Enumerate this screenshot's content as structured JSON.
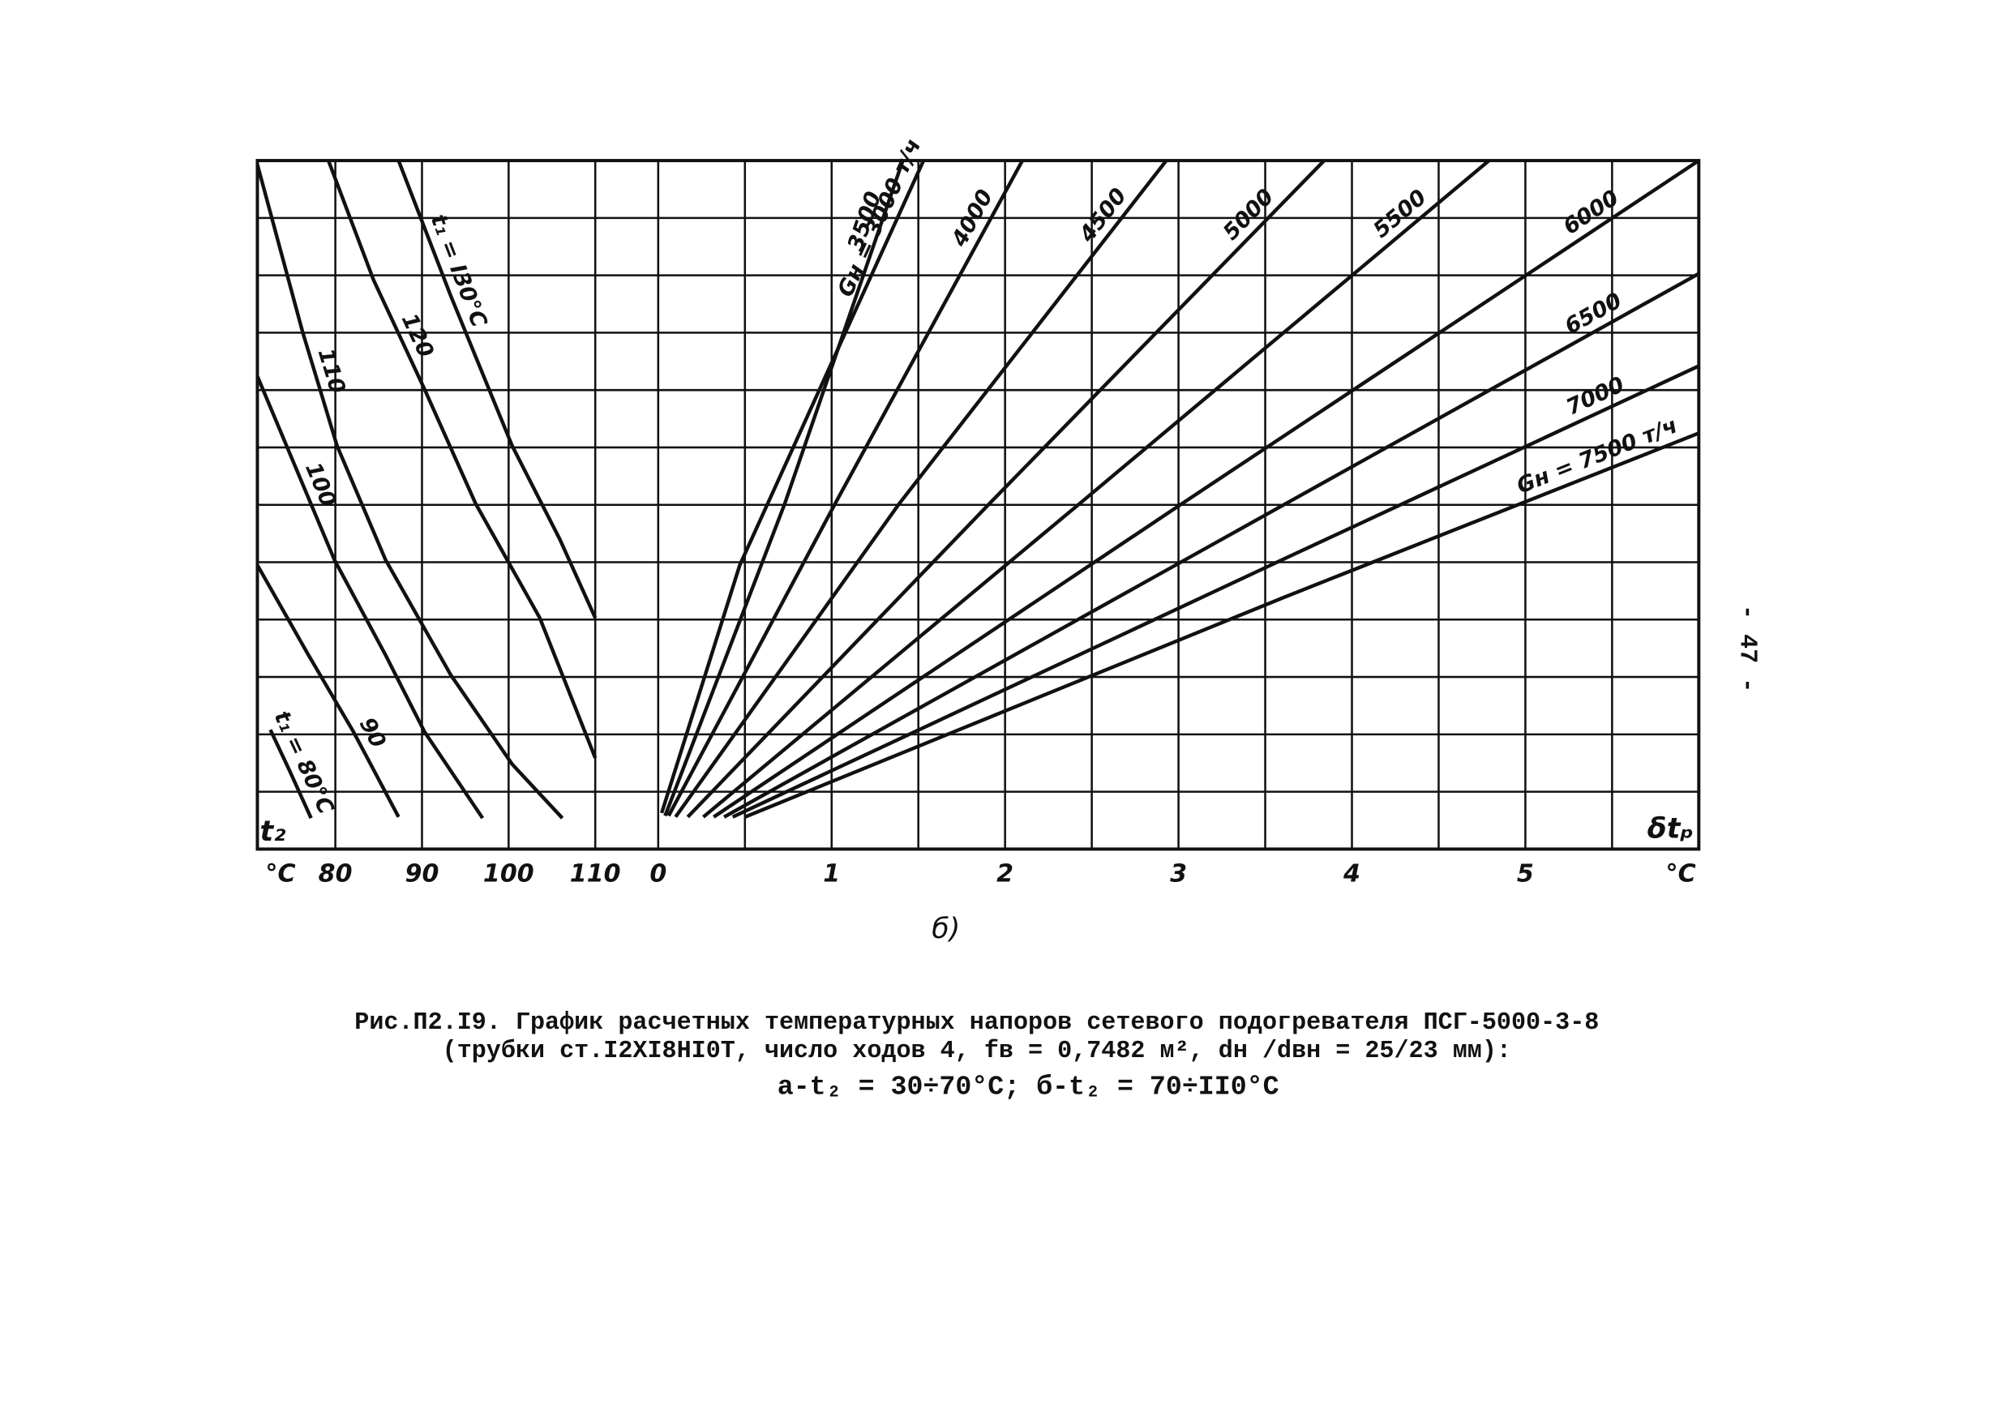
{
  "chart_data": [
    {
      "type": "line",
      "xlim": [
        71,
        110
      ],
      "xticks": [
        80,
        90,
        100,
        110
      ],
      "ylim": [
        0,
        12
      ],
      "yticks": [
        0,
        1,
        2,
        3,
        4,
        5,
        6,
        7,
        8,
        9,
        10,
        11,
        12
      ],
      "show_ytick_labels": false,
      "grid": true,
      "xlabel": "t₂",
      "xunit": "°C",
      "series": [
        {
          "name": "t₁ = 80°C",
          "color": "#111111",
          "x": [
            72.5,
            74.7,
            77.2
          ],
          "values": [
            2.08,
            1.37,
            0.54
          ]
        },
        {
          "name": "90",
          "color": "#111111",
          "x": [
            71,
            76.9,
            82.1,
            87.3
          ],
          "values": [
            4.95,
            3.38,
            2.04,
            0.56
          ]
        },
        {
          "name": "100",
          "color": "#111111",
          "x": [
            71,
            79.9,
            85.8,
            90.3,
            97
          ],
          "values": [
            8.24,
            5.04,
            3.38,
            2.04,
            0.54
          ]
        },
        {
          "name": "110",
          "color": "#111111",
          "x": [
            71,
            76.2,
            80.2,
            85.8,
            93.3,
            100.4,
            106.2
          ],
          "values": [
            11.93,
            9.02,
            7.03,
            5.04,
            3.04,
            1.48,
            0.54
          ]
        },
        {
          "name": "120",
          "color": "#111111",
          "x": [
            79.2,
            84.4,
            90.3,
            96.2,
            103.6,
            110
          ],
          "values": [
            12,
            9.92,
            8.01,
            6.02,
            4.03,
            1.59
          ]
        },
        {
          "name": "t₁ = I30°C",
          "color": "#111111",
          "x": [
            87.3,
            93.3,
            100.4,
            105.9,
            110
          ],
          "values": [
            12,
            9.65,
            7.03,
            5.4,
            4.03
          ]
        }
      ]
    },
    {
      "type": "line",
      "xlim": [
        0,
        6
      ],
      "xticks": [
        0,
        1,
        2,
        3,
        4,
        5
      ],
      "xminorticks": [
        0.5,
        1.5,
        2.5,
        3.5,
        4.5,
        5.5
      ],
      "ylim": [
        0,
        12
      ],
      "yticks": [
        0,
        1,
        2,
        3,
        4,
        5,
        6,
        7,
        8,
        9,
        10,
        11,
        12
      ],
      "show_ytick_labels": false,
      "grid": true,
      "xlabel": "δtₚ",
      "xunit": "°C",
      "series": [
        {
          "name": "Gн = 3000 т/ч",
          "color": "#111111",
          "x": [
            0.02,
            0.47,
            1.53
          ],
          "values": [
            0.63,
            4.95,
            12
          ]
        },
        {
          "name": "3500",
          "color": "#111111",
          "x": [
            0.04,
            0.73,
            1.41
          ],
          "values": [
            0.58,
            6.02,
            12
          ]
        },
        {
          "name": "4000",
          "color": "#111111",
          "x": [
            0.06,
            1.02,
            2.1
          ],
          "values": [
            0.58,
            6.02,
            12
          ]
        },
        {
          "name": "4500",
          "color": "#111111",
          "x": [
            0.1,
            1.39,
            2.93
          ],
          "values": [
            0.56,
            6.02,
            12
          ]
        },
        {
          "name": "5000",
          "color": "#111111",
          "x": [
            0.17,
            1.91,
            3.84
          ],
          "values": [
            0.56,
            6.02,
            12
          ]
        },
        {
          "name": "5500",
          "color": "#111111",
          "x": [
            0.26,
            2.43,
            4.79
          ],
          "values": [
            0.56,
            6.02,
            12
          ]
        },
        {
          "name": "6000",
          "color": "#111111",
          "x": [
            0.32,
            3.02,
            6
          ],
          "values": [
            0.56,
            6.02,
            12
          ]
        },
        {
          "name": "6500",
          "color": "#111111",
          "x": [
            0.38,
            3.5,
            6
          ],
          "values": [
            0.56,
            5.82,
            10.03
          ]
        },
        {
          "name": "7000",
          "color": "#111111",
          "x": [
            0.43,
            3.61,
            6
          ],
          "values": [
            0.56,
            5.06,
            8.42
          ]
        },
        {
          "name": "Gн = 7500 т/ч",
          "color": "#111111",
          "x": [
            0.5,
            3.61,
            6
          ],
          "values": [
            0.56,
            4.39,
            7.25
          ]
        }
      ]
    }
  ],
  "panel_label": "б)",
  "caption": [
    "Рис.П2.I9. График расчетных температурных напоров сетевого подогревателя ПСГ-5000-3-8",
    "(трубки ст.I2XI8HI0T, число ходов 4, fв = 0,7482 м², dн /dвн = 25/23 мм):",
    "а-t₂ = 30÷70°C; б-t₂ = 70÷II0°C"
  ],
  "page_number": "- 47 -"
}
